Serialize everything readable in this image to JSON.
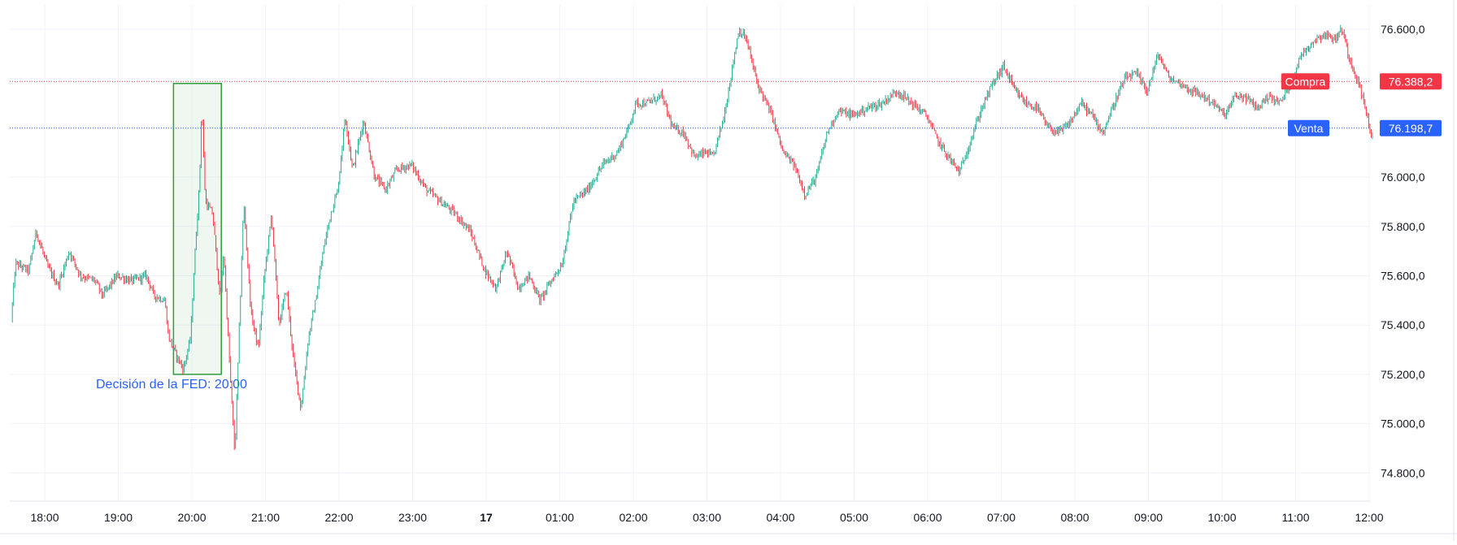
{
  "chart_data": {
    "type": "candlestick",
    "title": "",
    "xlabel": "",
    "ylabel": "",
    "ylim": [
      74700,
      76700
    ],
    "y_ticks": [
      {
        "value": 76600,
        "label": "76.600,0"
      },
      {
        "value": 76000,
        "label": "76.000,0"
      },
      {
        "value": 75800,
        "label": "75.800,0"
      },
      {
        "value": 75600,
        "label": "75.600,0"
      },
      {
        "value": 75400,
        "label": "75.400,0"
      },
      {
        "value": 75200,
        "label": "75.200,0"
      },
      {
        "value": 75000,
        "label": "75.000,0"
      },
      {
        "value": 74800,
        "label": "74.800,0"
      }
    ],
    "x_ticks": [
      {
        "time": 18.0,
        "label": "18:00",
        "bold": false
      },
      {
        "time": 19.0,
        "label": "19:00",
        "bold": false
      },
      {
        "time": 20.0,
        "label": "20:00",
        "bold": false
      },
      {
        "time": 21.0,
        "label": "21:00",
        "bold": false
      },
      {
        "time": 22.0,
        "label": "22:00",
        "bold": false
      },
      {
        "time": 23.0,
        "label": "23:00",
        "bold": false
      },
      {
        "time": 24.0,
        "label": "17",
        "bold": true
      },
      {
        "time": 25.0,
        "label": "01:00",
        "bold": false
      },
      {
        "time": 26.0,
        "label": "02:00",
        "bold": false
      },
      {
        "time": 27.0,
        "label": "03:00",
        "bold": false
      },
      {
        "time": 28.0,
        "label": "04:00",
        "bold": false
      },
      {
        "time": 29.0,
        "label": "05:00",
        "bold": false
      },
      {
        "time": 30.0,
        "label": "06:00",
        "bold": false
      },
      {
        "time": 31.0,
        "label": "07:00",
        "bold": false
      },
      {
        "time": 32.0,
        "label": "08:00",
        "bold": false
      },
      {
        "time": 33.0,
        "label": "09:00",
        "bold": false
      },
      {
        "time": 34.0,
        "label": "10:00",
        "bold": false
      },
      {
        "time": 35.0,
        "label": "11:00",
        "bold": false
      },
      {
        "time": 36.0,
        "label": "12:00",
        "bold": false
      }
    ],
    "price_lines": [
      {
        "name": "Compra",
        "value": 76388.2,
        "label": "76.388,2",
        "color": "#f23645"
      },
      {
        "name": "Venta",
        "value": 76198.7,
        "label": "76.198,7",
        "color": "#2962ff"
      }
    ],
    "annotation": {
      "text": "Decisión de la FED: 20:00",
      "color": "#2962ff",
      "box_time_start": 19.75,
      "box_time_end": 20.4,
      "box_low": 75200,
      "box_high": 76380,
      "box_color": "#2e9e3e"
    },
    "series": [
      {
        "type": "candlestick",
        "up_color": "#22ab94",
        "down_color": "#f23645",
        "x_range": [
          17.56,
          36.05
        ],
        "anchors": [
          [
            17.56,
            75420
          ],
          [
            17.62,
            75650
          ],
          [
            17.8,
            75620
          ],
          [
            17.9,
            75780
          ],
          [
            18.05,
            75640
          ],
          [
            18.2,
            75560
          ],
          [
            18.35,
            75700
          ],
          [
            18.5,
            75600
          ],
          [
            18.7,
            75580
          ],
          [
            18.8,
            75520
          ],
          [
            19.0,
            75600
          ],
          [
            19.2,
            75580
          ],
          [
            19.4,
            75600
          ],
          [
            19.5,
            75520
          ],
          [
            19.65,
            75500
          ],
          [
            19.7,
            75350
          ],
          [
            19.8,
            75280
          ],
          [
            19.9,
            75220
          ],
          [
            20.0,
            75350
          ],
          [
            20.05,
            75650
          ],
          [
            20.12,
            75980
          ],
          [
            20.15,
            76300
          ],
          [
            20.2,
            75900
          ],
          [
            20.3,
            75850
          ],
          [
            20.4,
            75500
          ],
          [
            20.45,
            75700
          ],
          [
            20.5,
            75400
          ],
          [
            20.6,
            74870
          ],
          [
            20.72,
            75900
          ],
          [
            20.82,
            75450
          ],
          [
            20.92,
            75300
          ],
          [
            21.0,
            75600
          ],
          [
            21.1,
            75850
          ],
          [
            21.2,
            75400
          ],
          [
            21.3,
            75550
          ],
          [
            21.4,
            75250
          ],
          [
            21.5,
            75060
          ],
          [
            21.6,
            75350
          ],
          [
            21.7,
            75500
          ],
          [
            21.8,
            75700
          ],
          [
            21.9,
            75850
          ],
          [
            22.0,
            75950
          ],
          [
            22.1,
            76250
          ],
          [
            22.2,
            76030
          ],
          [
            22.35,
            76230
          ],
          [
            22.5,
            76000
          ],
          [
            22.65,
            75950
          ],
          [
            22.8,
            76030
          ],
          [
            23.0,
            76050
          ],
          [
            23.2,
            75950
          ],
          [
            23.4,
            75900
          ],
          [
            23.6,
            75850
          ],
          [
            23.8,
            75780
          ],
          [
            24.0,
            75620
          ],
          [
            24.15,
            75550
          ],
          [
            24.3,
            75700
          ],
          [
            24.45,
            75550
          ],
          [
            24.6,
            75600
          ],
          [
            24.75,
            75500
          ],
          [
            24.9,
            75580
          ],
          [
            25.05,
            75650
          ],
          [
            25.2,
            75900
          ],
          [
            25.4,
            75950
          ],
          [
            25.6,
            76050
          ],
          [
            25.8,
            76100
          ],
          [
            25.95,
            76200
          ],
          [
            26.05,
            76300
          ],
          [
            26.2,
            76300
          ],
          [
            26.4,
            76330
          ],
          [
            26.55,
            76200
          ],
          [
            26.7,
            76180
          ],
          [
            26.85,
            76080
          ],
          [
            27.0,
            76100
          ],
          [
            27.1,
            76080
          ],
          [
            27.25,
            76250
          ],
          [
            27.45,
            76600
          ],
          [
            27.55,
            76560
          ],
          [
            27.7,
            76380
          ],
          [
            27.9,
            76250
          ],
          [
            28.05,
            76100
          ],
          [
            28.2,
            76050
          ],
          [
            28.35,
            75930
          ],
          [
            28.5,
            76000
          ],
          [
            28.65,
            76180
          ],
          [
            28.8,
            76270
          ],
          [
            29.0,
            76250
          ],
          [
            29.2,
            76280
          ],
          [
            29.4,
            76300
          ],
          [
            29.6,
            76350
          ],
          [
            29.8,
            76300
          ],
          [
            30.0,
            76250
          ],
          [
            30.15,
            76150
          ],
          [
            30.3,
            76080
          ],
          [
            30.45,
            76020
          ],
          [
            30.6,
            76150
          ],
          [
            30.75,
            76280
          ],
          [
            30.9,
            76380
          ],
          [
            31.05,
            76450
          ],
          [
            31.2,
            76350
          ],
          [
            31.35,
            76300
          ],
          [
            31.5,
            76280
          ],
          [
            31.65,
            76200
          ],
          [
            31.8,
            76180
          ],
          [
            31.95,
            76220
          ],
          [
            32.1,
            76300
          ],
          [
            32.25,
            76250
          ],
          [
            32.4,
            76180
          ],
          [
            32.55,
            76300
          ],
          [
            32.7,
            76400
          ],
          [
            32.85,
            76420
          ],
          [
            33.0,
            76350
          ],
          [
            33.15,
            76500
          ],
          [
            33.3,
            76400
          ],
          [
            33.45,
            76380
          ],
          [
            33.6,
            76350
          ],
          [
            33.75,
            76330
          ],
          [
            33.9,
            76300
          ],
          [
            34.05,
            76250
          ],
          [
            34.2,
            76330
          ],
          [
            34.35,
            76320
          ],
          [
            34.5,
            76280
          ],
          [
            34.65,
            76330
          ],
          [
            34.8,
            76300
          ],
          [
            34.95,
            76380
          ],
          [
            35.1,
            76500
          ],
          [
            35.25,
            76550
          ],
          [
            35.4,
            76580
          ],
          [
            35.55,
            76560
          ],
          [
            35.65,
            76600
          ],
          [
            35.75,
            76480
          ],
          [
            35.85,
            76400
          ],
          [
            35.95,
            76300
          ],
          [
            36.05,
            76160
          ]
        ]
      }
    ]
  }
}
